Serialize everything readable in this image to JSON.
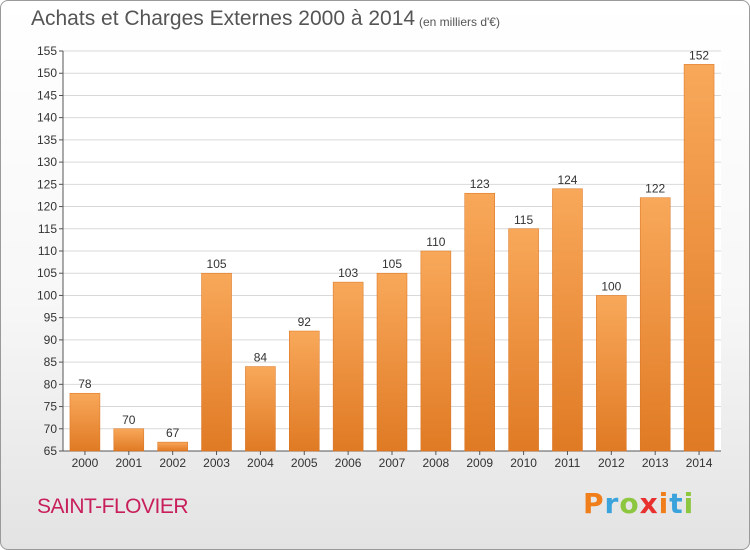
{
  "header": {
    "title": "Achats et Charges Externes 2000 à 2014",
    "unit": "(en milliers d'€)"
  },
  "footer": {
    "commune": "SAINT-FLOVIER",
    "brand": "Proxiti",
    "brand_colors": [
      "#f07e1b",
      "#3aa3dc",
      "#8dc63f",
      "#e8312f",
      "#f07e1b",
      "#3aa3dc",
      "#8dc63f"
    ]
  },
  "colors": {
    "bar_light": "#f8a85a",
    "bar_dark": "#e07a24",
    "grid": "#d9d9d9",
    "axis_text": "#333333",
    "title": "#555555",
    "commune": "#c81e5a"
  },
  "chart_data": {
    "type": "bar",
    "title": "Achats et Charges Externes 2000 à 2014",
    "subtitle": "(en milliers d'€)",
    "categories": [
      "2000",
      "2001",
      "2002",
      "2003",
      "2004",
      "2005",
      "2006",
      "2007",
      "2008",
      "2009",
      "2010",
      "2011",
      "2012",
      "2013",
      "2014"
    ],
    "values": [
      78,
      70,
      67,
      105,
      84,
      92,
      103,
      105,
      110,
      123,
      115,
      124,
      100,
      122,
      152
    ],
    "ylim": [
      65,
      155
    ],
    "ytick_step": 5,
    "grid": true,
    "data_labels": true
  }
}
